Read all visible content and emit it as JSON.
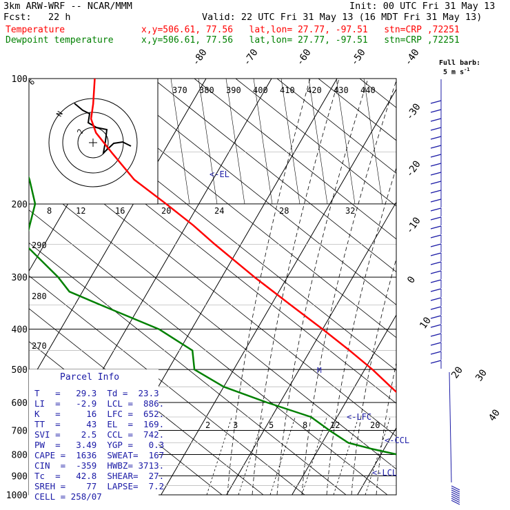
{
  "header": {
    "model_line": "3km ARW-WRF -- NCAR/MMM",
    "init_line": "Init: 00 UTC Fri 31 May 13",
    "fcst_line": "Fcst:   22 h",
    "valid_line": "Valid: 22 UTC Fri 31 May 13 (16 MDT Fri 31 May 13)",
    "temp_label": "Temperature",
    "dew_label": "Dewpoint temperature",
    "temp_info": "x,y=506.61, 77.56   lat,lon= 27.77, -97.51   stn=CRP ,72251",
    "dew_info": "x,y=506.61, 77.56   lat,lon= 27.77, -97.51   stn=CRP ,72251"
  },
  "colors": {
    "temperature": "#ff0000",
    "dewpoint": "#008000",
    "annotation": "#1a1aa6",
    "isobar": "#000000"
  },
  "chart_data": {
    "type": "line",
    "title": "",
    "pressure_levels": [
      "100",
      "200",
      "300",
      "400",
      "500",
      "600",
      "700",
      "800",
      "900",
      "1000"
    ],
    "skewed_isotherm_labels": [
      "-80",
      "-70",
      "-60",
      "-50",
      "-40",
      "-30",
      "-20",
      "-10",
      "0",
      "10",
      "20",
      "30",
      "40"
    ],
    "theta_labels": [
      "370",
      "380",
      "390",
      "400",
      "410",
      "420",
      "430",
      "440"
    ],
    "mixing_ratio_labels": [
      "2",
      "3",
      "5",
      "8",
      "12",
      "20"
    ],
    "hodograph_speed_labels": [
      "8",
      "12",
      "16",
      "20",
      "24",
      "28",
      "32"
    ],
    "hodo_units": "kts",
    "left_axis_extra": [
      "290",
      "280",
      "270"
    ],
    "hodograph_marks": [
      "N",
      "2",
      "6"
    ],
    "annotations": [
      "<-EL",
      "<-LFC",
      "<-CCL",
      "<-LCL"
    ],
    "series": [
      {
        "name": "Temperature",
        "pressure": [
          1000,
          985,
          950,
          900,
          850,
          800,
          750,
          700,
          650,
          600,
          550,
          500,
          450,
          400,
          350,
          300,
          250,
          225,
          200,
          175,
          150,
          135,
          125,
          115,
          100
        ],
        "values": [
          29.3,
          26.5,
          23.6,
          20.5,
          17.8,
          15.0,
          11.0,
          6.5,
          3.0,
          -0.5,
          -4.5,
          -8.8,
          -14.0,
          -20.0,
          -27.0,
          -35.0,
          -44.0,
          -49.0,
          -55.0,
          -62.0,
          -68.0,
          -72.0,
          -74.0,
          -75.0,
          -77.0
        ]
      },
      {
        "name": "Dewpoint temperature",
        "pressure": [
          1000,
          975,
          950,
          925,
          900,
          875,
          850,
          825,
          800,
          775,
          750,
          700,
          650,
          600,
          550,
          500,
          450,
          400,
          350,
          325,
          300,
          250,
          200,
          175,
          150,
          125,
          100
        ],
        "values": [
          23.3,
          22.0,
          21.7,
          20.0,
          17.5,
          14.5,
          10.5,
          6.5,
          2.5,
          -2.0,
          -6.0,
          -10.0,
          -14.0,
          -22.0,
          -30.0,
          -36.0,
          -38.0,
          -45.0,
          -56.0,
          -62.0,
          -65.0,
          -73.0,
          -75.0,
          -78.0,
          -82.0,
          -90.0,
          -98.0
        ]
      }
    ]
  },
  "parcel": {
    "title": "Parcel Info",
    "rows": [
      "T   =   29.3  Td =  23.3",
      "LI  =   -2.9  LCL =  886.",
      "K   =     16  LFC =  652.",
      "TT  =     43  EL  =  169.",
      "SVI =    2.5  CCL =  742.",
      "PW  =   3.49  YGP =   0.3",
      "CAPE =  1636  SWEAT=  167",
      "CIN  =  -359  HWBZ= 3713.",
      "Tc  =   42.8  SHEAR=  27.",
      "SREH =    77  LAPSE=  7.2",
      "CELL = 258/07"
    ]
  },
  "barb_legend": {
    "line1": "Full barb:",
    "line2": "5 m s",
    "sup": "-1"
  }
}
